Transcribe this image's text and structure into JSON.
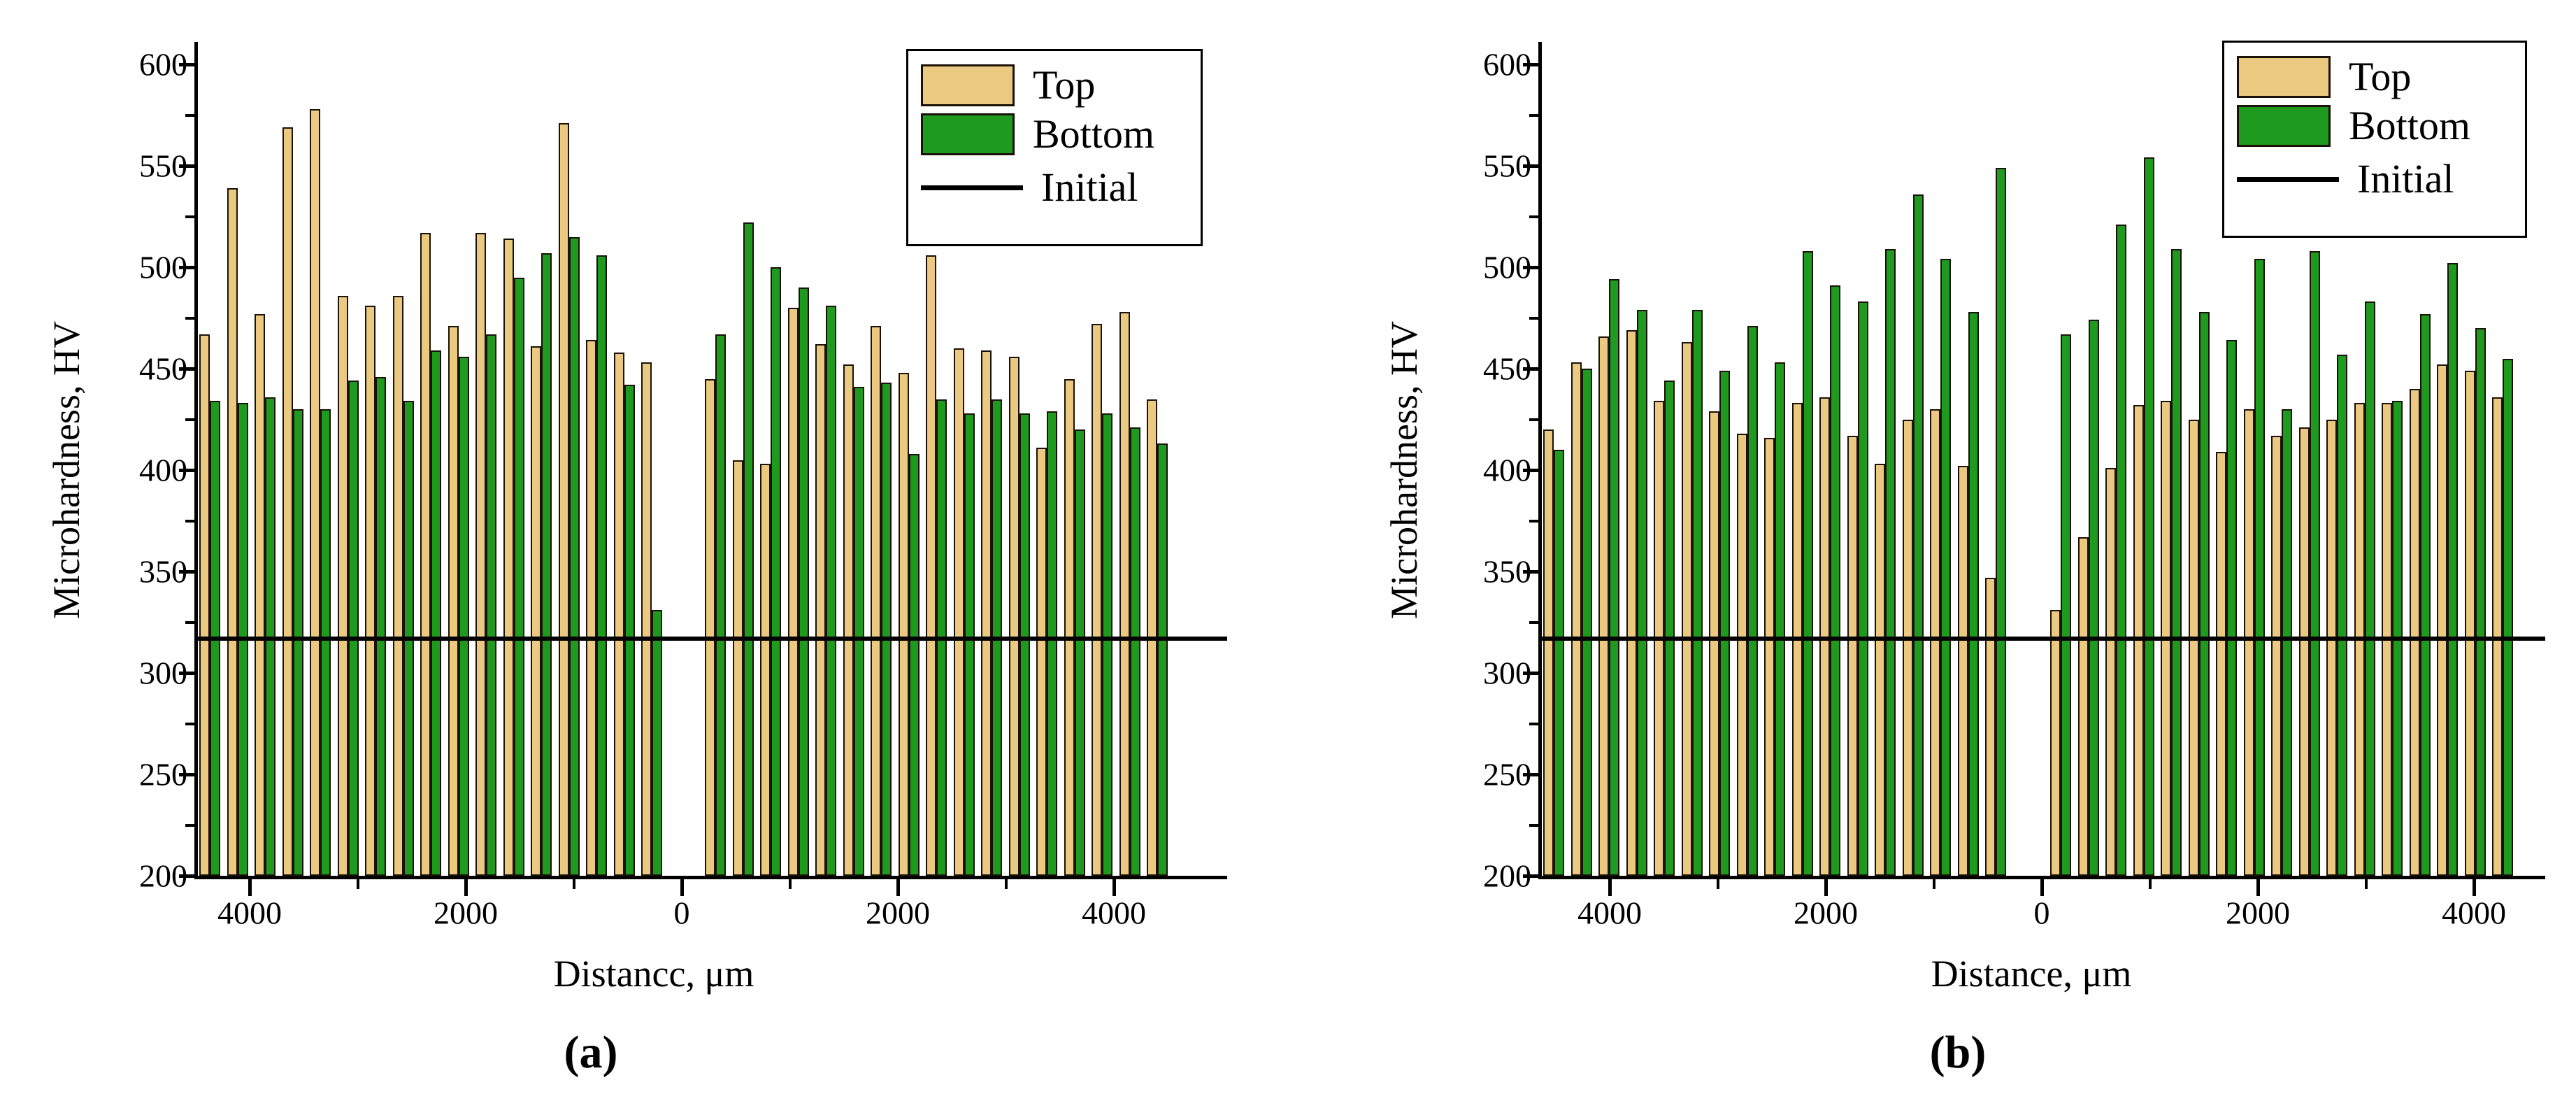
{
  "colors": {
    "top": "#EBC981",
    "bottom": "#1E9B1E",
    "bar_border": "#1a1208",
    "initial_line": "#000000",
    "axis": "#000000",
    "background": "#ffffff"
  },
  "chart_data": [
    {
      "id": "a",
      "type": "bar",
      "caption": "(a)",
      "xlabel": "Distancc, μm",
      "ylabel": "Microhardness, HV",
      "ylim": [
        200,
        600
      ],
      "y_major_ticks": [
        600,
        550,
        500,
        450,
        400,
        350,
        300,
        250,
        200
      ],
      "y_minor_step": 25,
      "x_tick_values": [
        -4000,
        -2000,
        0,
        2000,
        4000
      ],
      "x_tick_labels": [
        "4000",
        "2000",
        "0",
        "2000",
        "4000"
      ],
      "x_minor_tick_values": [
        -3000,
        -1000,
        1000,
        3000
      ],
      "initial_hv": 317,
      "grid": false,
      "legend_position": "top-right",
      "legend": [
        {
          "label": "Top",
          "swatch": "top"
        },
        {
          "label": "Bottom",
          "swatch": "bottom"
        },
        {
          "label": "Initial",
          "swatch": "line"
        }
      ],
      "series_names": [
        "Top",
        "Bottom"
      ],
      "groups": {
        "left": {
          "pairs_top": [
            467,
            539,
            477,
            569,
            578,
            486,
            481,
            486,
            517,
            471,
            517,
            514,
            461,
            571,
            464,
            458,
            453
          ],
          "pairs_bottom": [
            434,
            433,
            436,
            430,
            430,
            444,
            446,
            434,
            459,
            456,
            467,
            495,
            507,
            515,
            506,
            442,
            331
          ]
        },
        "right": {
          "pairs_top": [
            445,
            405,
            403,
            480,
            462,
            452,
            471,
            448,
            506,
            460,
            459,
            456,
            411,
            445,
            472,
            478,
            435
          ],
          "pairs_bottom": [
            467,
            522,
            500,
            490,
            481,
            441,
            443,
            408,
            435,
            428,
            435,
            428,
            429,
            420,
            428,
            421,
            413
          ]
        }
      }
    },
    {
      "id": "b",
      "type": "bar",
      "caption": "(b)",
      "xlabel": "Distance, μm",
      "ylabel": "Microhardness, HV",
      "ylim": [
        200,
        600
      ],
      "y_major_ticks": [
        600,
        550,
        500,
        450,
        400,
        350,
        300,
        250,
        200
      ],
      "y_minor_step": 25,
      "x_tick_values": [
        -4000,
        -2000,
        0,
        2000,
        4000
      ],
      "x_tick_labels": [
        "4000",
        "2000",
        "0",
        "2000",
        "4000"
      ],
      "x_minor_tick_values": [
        -3000,
        -1000,
        1000,
        3000
      ],
      "initial_hv": 317,
      "grid": false,
      "legend_position": "top-right",
      "legend": [
        {
          "label": "Top",
          "swatch": "top"
        },
        {
          "label": "Bottom",
          "swatch": "bottom"
        },
        {
          "label": "Initial",
          "swatch": "line"
        }
      ],
      "series_names": [
        "Top",
        "Bottom"
      ],
      "groups": {
        "left": {
          "pairs_top": [
            420,
            453,
            466,
            469,
            434,
            463,
            429,
            418,
            416,
            433,
            436,
            417,
            403,
            425,
            430,
            402,
            347
          ],
          "pairs_bottom": [
            410,
            450,
            494,
            479,
            444,
            479,
            449,
            471,
            453,
            508,
            491,
            483,
            509,
            536,
            504,
            478,
            549
          ]
        },
        "right": {
          "pairs_top": [
            331,
            367,
            401,
            432,
            434,
            425,
            409,
            430,
            417,
            421,
            425,
            433,
            433,
            440,
            452,
            449,
            436
          ],
          "pairs_bottom": [
            467,
            474,
            521,
            554,
            509,
            478,
            464,
            504,
            430,
            508,
            457,
            483,
            434,
            477,
            502,
            470,
            455
          ]
        }
      }
    }
  ]
}
